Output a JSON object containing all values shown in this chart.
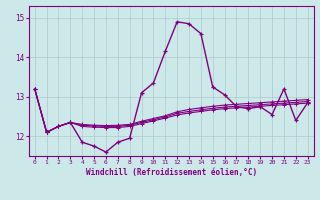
{
  "xlabel": "Windchill (Refroidissement éolien,°C)",
  "bg_color": "#cce8e8",
  "line_color": "#800080",
  "grid_color": "#aacccc",
  "xlim": [
    -0.5,
    23.5
  ],
  "ylim": [
    11.5,
    15.3
  ],
  "yticks": [
    12,
    13,
    14,
    15
  ],
  "xticks": [
    0,
    1,
    2,
    3,
    4,
    5,
    6,
    7,
    8,
    9,
    10,
    11,
    12,
    13,
    14,
    15,
    16,
    17,
    18,
    19,
    20,
    21,
    22,
    23
  ],
  "series1": [
    13.2,
    12.1,
    12.25,
    12.35,
    11.85,
    11.75,
    11.6,
    11.85,
    11.95,
    13.1,
    13.35,
    14.15,
    14.9,
    14.85,
    14.6,
    13.25,
    13.05,
    12.75,
    12.7,
    12.75,
    12.55,
    13.2,
    12.4,
    12.85
  ],
  "series2": [
    13.2,
    12.1,
    12.25,
    12.35,
    12.3,
    12.28,
    12.27,
    12.28,
    12.3,
    12.38,
    12.45,
    12.52,
    12.62,
    12.68,
    12.72,
    12.76,
    12.79,
    12.81,
    12.83,
    12.85,
    12.87,
    12.89,
    12.91,
    12.93
  ],
  "series3": [
    13.2,
    12.1,
    12.25,
    12.35,
    12.28,
    12.26,
    12.25,
    12.25,
    12.28,
    12.35,
    12.42,
    12.49,
    12.58,
    12.63,
    12.67,
    12.71,
    12.74,
    12.76,
    12.78,
    12.8,
    12.82,
    12.84,
    12.86,
    12.88
  ],
  "series4": [
    13.2,
    12.1,
    12.25,
    12.35,
    12.25,
    12.23,
    12.22,
    12.22,
    12.25,
    12.32,
    12.39,
    12.46,
    12.54,
    12.59,
    12.63,
    12.67,
    12.7,
    12.72,
    12.74,
    12.76,
    12.78,
    12.8,
    12.82,
    12.84
  ]
}
